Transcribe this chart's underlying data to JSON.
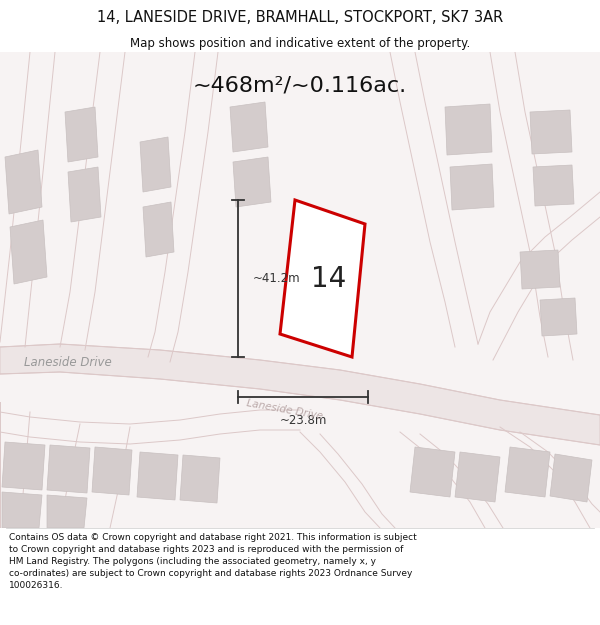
{
  "title_line1": "14, LANESIDE DRIVE, BRAMHALL, STOCKPORT, SK7 3AR",
  "title_line2": "Map shows position and indicative extent of the property.",
  "area_text": "~468m²/~0.116ac.",
  "dimension_height": "~41.2m",
  "dimension_width": "~23.8m",
  "property_number": "14",
  "road_label_left": "Laneside Drive",
  "road_label_center": "Laneside Drive",
  "footer_text_line1": "Contains OS data © Crown copyright and database right 2021. This information is subject",
  "footer_text_line2": "to Crown copyright and database rights 2023 and is reproduced with the permission of",
  "footer_text_line3": "HM Land Registry. The polygons (including the associated geometry, namely x, y",
  "footer_text_line4": "co-ordinates) are subject to Crown copyright and database rights 2023 Ordnance Survey",
  "footer_text_line5": "100026316.",
  "map_bg": "#f7f3f3",
  "road_fill": "#ede5e5",
  "road_edge": "#dcc8c8",
  "building_fill": "#d4cccc",
  "building_edge": "#c8c0c0",
  "property_color": "#cc0000",
  "property_fill": "#ffffff",
  "dim_color": "#333333",
  "title_color": "#111111",
  "footer_color": "#111111",
  "text_road_color": "#999999"
}
